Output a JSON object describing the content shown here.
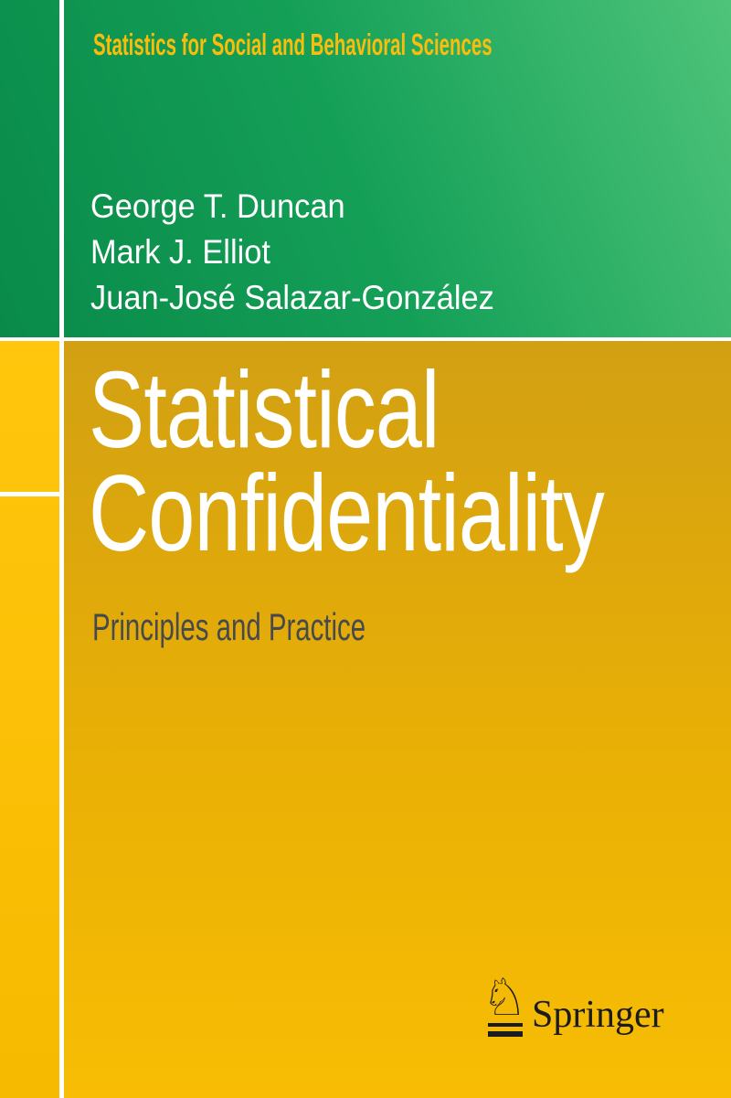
{
  "cover": {
    "series": "Statistics for Social and Behavioral Sciences",
    "authors": [
      "George T. Duncan",
      "Mark J. Elliot",
      "Juan-José Salazar-González"
    ],
    "title": {
      "full": "Statistical Confidentiality",
      "lines": [
        "Statistical",
        "Confidentiality"
      ]
    },
    "subtitle": "Principles and Practice",
    "publisher": {
      "name": "Springer",
      "logo_icon": "springer-horse-knight-icon",
      "logo_glyph": "♘"
    },
    "colors": {
      "green_dark": "#098a49",
      "green_light": "#4ec47a",
      "gold_dark": "#d2a013",
      "gold_bright": "#f8bd04",
      "left_strip_yellow": "#ffc60d",
      "series_text": "#fbbd0c",
      "title_text": "#ffffff",
      "subtitle_text": "#46494e",
      "publisher_text": "#1b1c1e",
      "divider": "#ffffff"
    }
  }
}
